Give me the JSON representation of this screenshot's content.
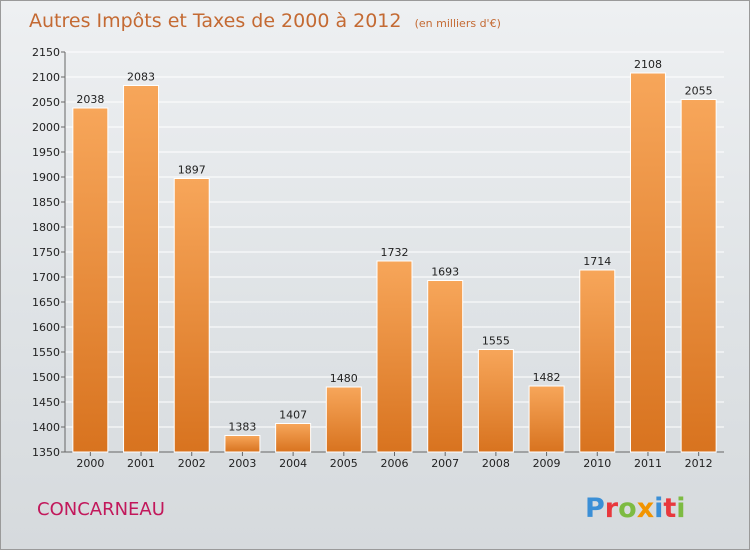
{
  "title": {
    "main": "Autres Impôts et Taxes de 2000 à 2012",
    "unit": "(en milliers d'€)"
  },
  "commune": "CONCARNEAU",
  "logo": {
    "text": "Proxiti",
    "letters": [
      {
        "char": "P",
        "color": "#3b8fd6"
      },
      {
        "char": "r",
        "color": "#e8383d"
      },
      {
        "char": "o",
        "color": "#7dbb42"
      },
      {
        "char": "x",
        "color": "#f29400"
      },
      {
        "char": "i",
        "color": "#3b8fd6"
      },
      {
        "char": "t",
        "color": "#e8383d"
      },
      {
        "char": "i",
        "color": "#7dbb42"
      }
    ]
  },
  "colors": {
    "bar_light": "#f7a65a",
    "bar_dark": "#d8731f",
    "title": "#c46a33",
    "commune": "#c2185b",
    "grid": "#ffffff"
  },
  "chart_data": {
    "type": "bar",
    "title": "Autres Impôts et Taxes de 2000 à 2012",
    "subtitle": "(en milliers d'€)",
    "xlabel": "",
    "ylabel": "",
    "categories": [
      "2000",
      "2001",
      "2002",
      "2003",
      "2004",
      "2005",
      "2006",
      "2007",
      "2008",
      "2009",
      "2010",
      "2011",
      "2012"
    ],
    "values": [
      2038,
      2083,
      1897,
      1383,
      1407,
      1480,
      1732,
      1693,
      1555,
      1482,
      1714,
      2108,
      2055
    ],
    "ylim": [
      1350,
      2150
    ],
    "yticks": [
      1350,
      1400,
      1450,
      1500,
      1550,
      1600,
      1650,
      1700,
      1750,
      1800,
      1850,
      1900,
      1950,
      2000,
      2050,
      2100,
      2150
    ],
    "grid": true,
    "legend": "none"
  }
}
